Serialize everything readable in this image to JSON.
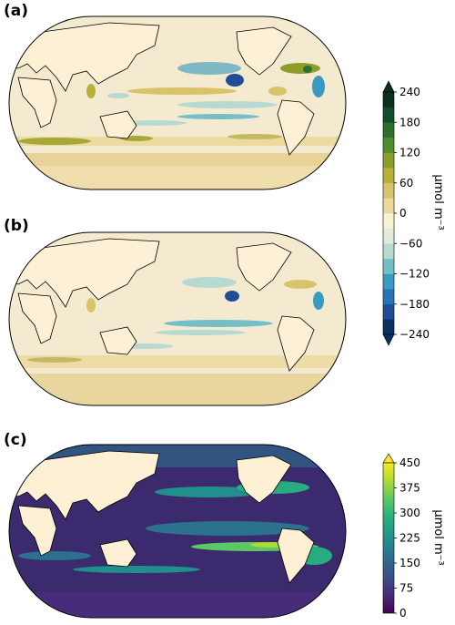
{
  "panels": [
    {
      "label": "(a)"
    },
    {
      "label": "(b)"
    },
    {
      "label": "(c)"
    }
  ],
  "colorbar_diverging": {
    "ticks": [
      "240",
      "180",
      "120",
      "60",
      "0",
      "−60",
      "−120",
      "−180",
      "−240"
    ],
    "unit": "μmol m⁻³",
    "colors": [
      "#0b2f5e",
      "#1f4e97",
      "#2a74b5",
      "#3a9ac0",
      "#74bfc7",
      "#b7d9d2",
      "#e0ebda",
      "#f7f2cf",
      "#ecd89b",
      "#d8c26a",
      "#b7b13a",
      "#8a9e28",
      "#4f8e2b",
      "#2d6f2c",
      "#114d2c",
      "#0b2f1f"
    ]
  },
  "colorbar_sequential": {
    "ticks": [
      "450",
      "375",
      "300",
      "225",
      "150",
      "75",
      "0"
    ],
    "unit": "μmol m⁻³",
    "colors": [
      "#440154",
      "#472c7a",
      "#3b518b",
      "#2c718e",
      "#21908d",
      "#27ad81",
      "#5cc863",
      "#aadc32",
      "#fde725"
    ]
  },
  "land_color": "#fdf0d5"
}
